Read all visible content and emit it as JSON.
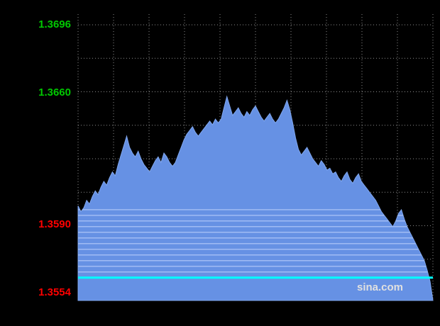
{
  "page": {
    "background": "#000000"
  },
  "watermark": {
    "text": "sina.com",
    "color": "#e0e0e0"
  },
  "chart_data": {
    "type": "area",
    "title": "",
    "xlabel": "",
    "ylabel": "",
    "ylim": [
      1.3554,
      1.3696
    ],
    "y_axis_labels": [
      {
        "text": "1.3696",
        "value": 1.3696,
        "color": "#00c800"
      },
      {
        "text": "1.3660",
        "value": 1.366,
        "color": "#00c800"
      },
      {
        "text": "1.3590",
        "value": 1.359,
        "color": "#ff0000"
      },
      {
        "text": "1.3554",
        "value": 1.3554,
        "color": "#ff0000"
      }
    ],
    "grid": {
      "h_lines": 9,
      "v_lines": 11,
      "color": "#ffffff",
      "opacity": 0.55,
      "dash": "1 3"
    },
    "area": {
      "fill": "#6691e4",
      "edge": "#7fa6ee"
    },
    "stripes": {
      "color": "#a6c0f5",
      "opacity": 0.9,
      "values": [
        1.3598,
        1.3595,
        1.3592,
        1.3589,
        1.3586,
        1.3583,
        1.358,
        1.3577,
        1.3574,
        1.3571,
        1.3568,
        1.3565
      ]
    },
    "marker_line": {
      "value": 1.3562,
      "color": "#00ffff",
      "width": 3
    },
    "series": [
      {
        "name": "price",
        "values": [
          1.36,
          1.3597,
          1.3599,
          1.3603,
          1.3601,
          1.3605,
          1.3608,
          1.3606,
          1.361,
          1.3613,
          1.3611,
          1.3615,
          1.3618,
          1.3616,
          1.3622,
          1.3627,
          1.3632,
          1.3637,
          1.3631,
          1.3628,
          1.3626,
          1.3629,
          1.3625,
          1.3622,
          1.362,
          1.3618,
          1.3621,
          1.3624,
          1.3626,
          1.3623,
          1.3628,
          1.3626,
          1.3623,
          1.3621,
          1.3623,
          1.3627,
          1.3631,
          1.3635,
          1.3638,
          1.364,
          1.3642,
          1.3639,
          1.3637,
          1.3639,
          1.3641,
          1.3643,
          1.3645,
          1.3643,
          1.3646,
          1.3644,
          1.3646,
          1.3652,
          1.3658,
          1.3653,
          1.3648,
          1.365,
          1.3652,
          1.3649,
          1.3647,
          1.365,
          1.3648,
          1.3651,
          1.3653,
          1.365,
          1.3647,
          1.3645,
          1.3647,
          1.3649,
          1.3646,
          1.3644,
          1.3646,
          1.3649,
          1.3652,
          1.3656,
          1.3651,
          1.3644,
          1.3636,
          1.363,
          1.3627,
          1.3629,
          1.3631,
          1.3628,
          1.3625,
          1.3623,
          1.3621,
          1.3624,
          1.3622,
          1.3619,
          1.362,
          1.3617,
          1.3618,
          1.3615,
          1.3613,
          1.3616,
          1.3618,
          1.3614,
          1.3612,
          1.3615,
          1.3617,
          1.3613,
          1.3611,
          1.3609,
          1.3607,
          1.3605,
          1.3603,
          1.36,
          1.3597,
          1.3595,
          1.3593,
          1.3591,
          1.3589,
          1.3592,
          1.3596,
          1.3598,
          1.3593,
          1.3589,
          1.3586,
          1.3583,
          1.358,
          1.3577,
          1.3574,
          1.3571,
          1.3566,
          1.356,
          1.355
        ]
      }
    ]
  }
}
